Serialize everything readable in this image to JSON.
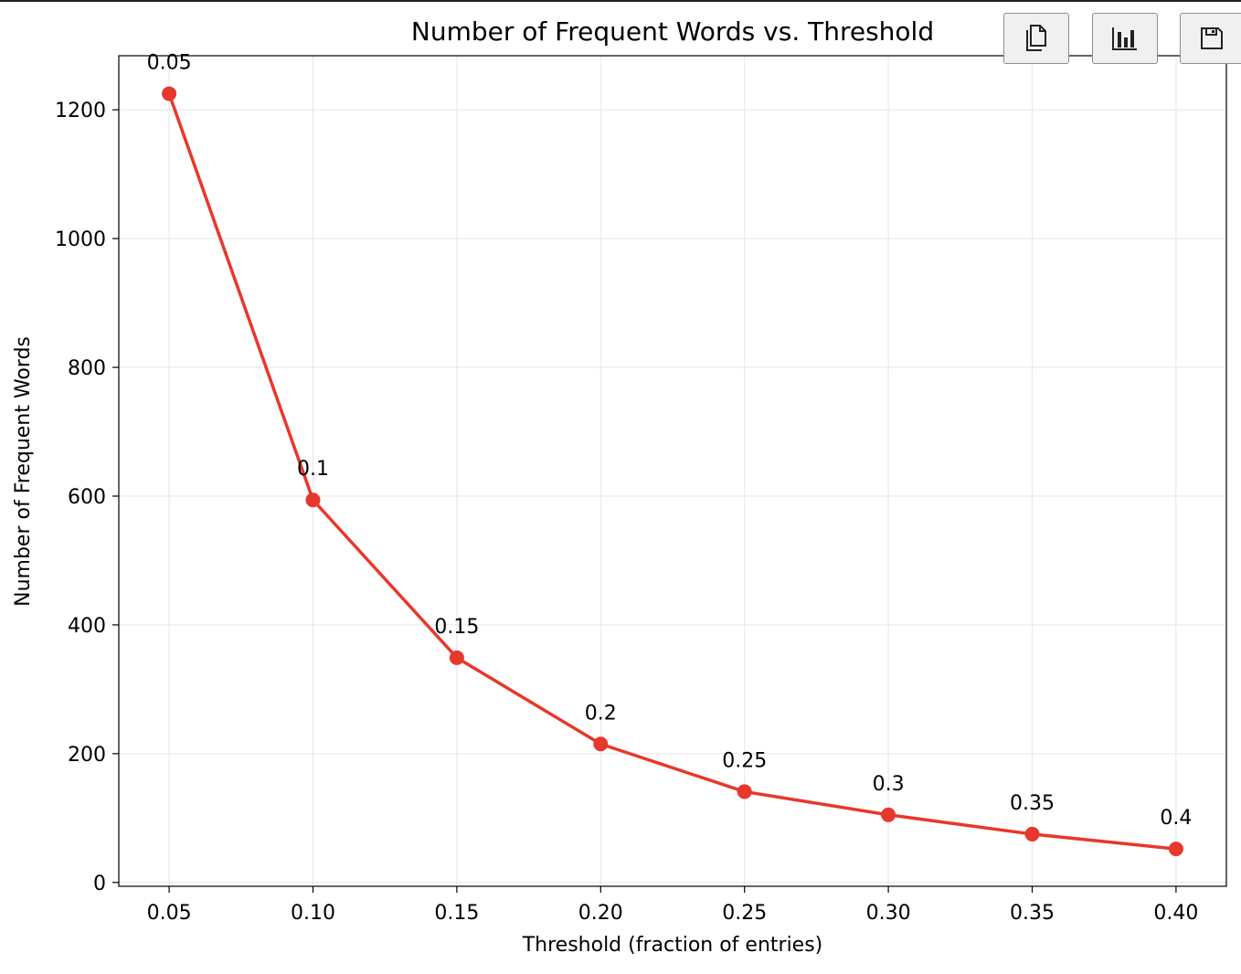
{
  "toolbar": {
    "buttons": [
      {
        "name": "copy-button",
        "icon": "copy-icon"
      },
      {
        "name": "chart-button",
        "icon": "bar-chart-icon"
      },
      {
        "name": "save-button",
        "icon": "save-icon"
      }
    ]
  },
  "chart_data": {
    "type": "line",
    "title": "Number of Frequent Words vs. Threshold",
    "xlabel": "Threshold (fraction of entries)",
    "ylabel": "Number of Frequent Words",
    "x": [
      0.05,
      0.1,
      0.15,
      0.2,
      0.25,
      0.3,
      0.35,
      0.4
    ],
    "series": [
      {
        "values": [
          1225,
          594,
          349,
          215,
          141,
          105,
          75,
          52
        ]
      }
    ],
    "point_labels": [
      "0.05",
      "0.1",
      "0.15",
      "0.2",
      "0.25",
      "0.3",
      "0.35",
      "0.4"
    ],
    "xticks": [
      "0.05",
      "0.10",
      "0.15",
      "0.20",
      "0.25",
      "0.30",
      "0.35",
      "0.40"
    ],
    "yticks": [
      "0",
      "200",
      "400",
      "600",
      "800",
      "1000",
      "1200"
    ],
    "xlim": [
      0.0325,
      0.4175
    ],
    "ylim": [
      -6,
      1284
    ],
    "grid": true,
    "line_color": "#e8372b",
    "marker_color": "#e8372b",
    "grid_color": "#e6e6e6"
  }
}
